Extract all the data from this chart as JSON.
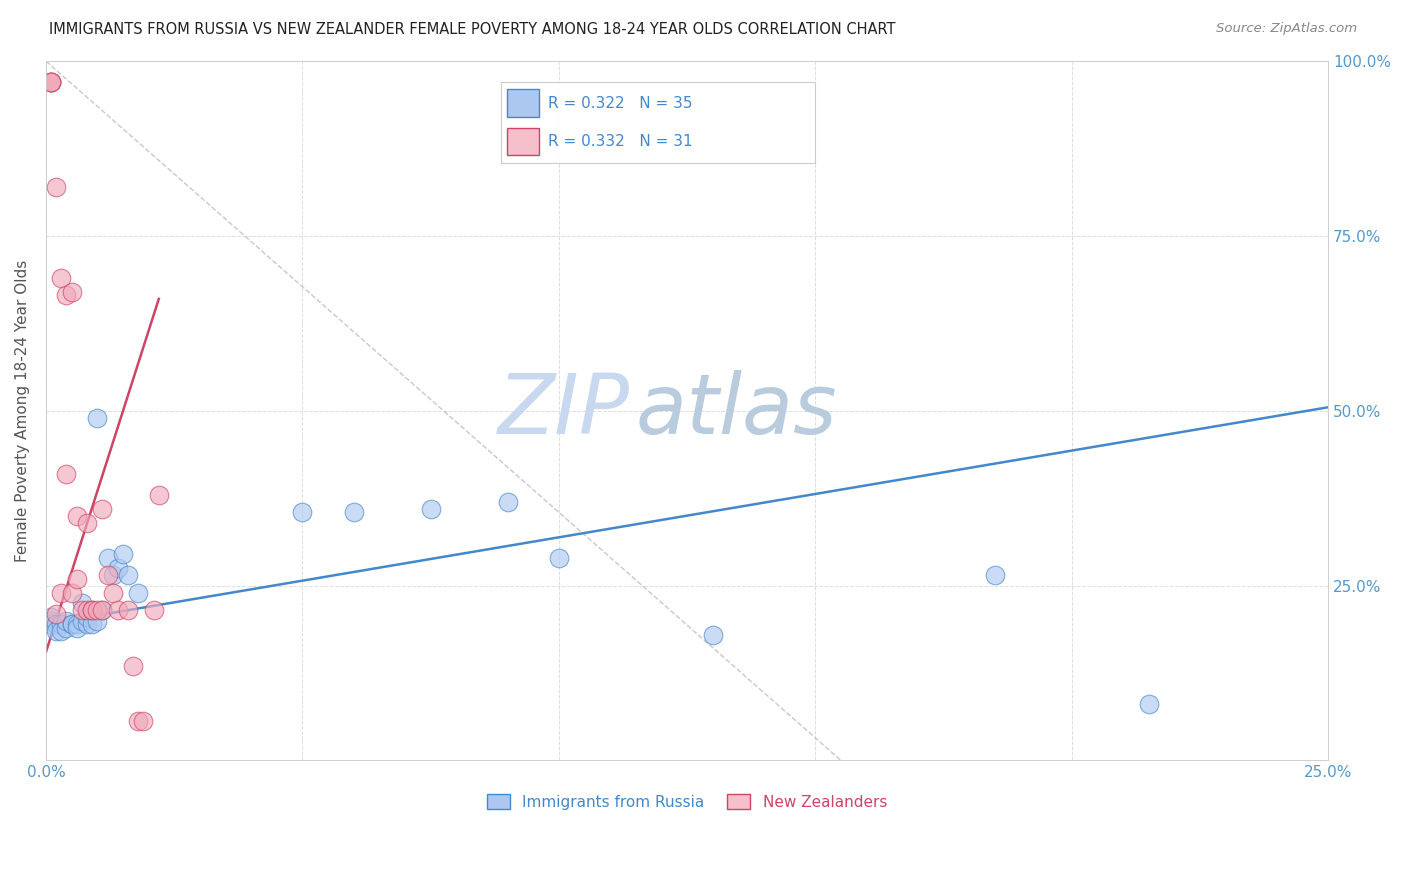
{
  "title": "IMMIGRANTS FROM RUSSIA VS NEW ZEALANDER FEMALE POVERTY AMONG 18-24 YEAR OLDS CORRELATION CHART",
  "source": "Source: ZipAtlas.com",
  "ylabel": "Female Poverty Among 18-24 Year Olds",
  "xlim": [
    0,
    0.25
  ],
  "ylim": [
    0,
    1.0
  ],
  "xticks": [
    0.0,
    0.05,
    0.1,
    0.15,
    0.2,
    0.25
  ],
  "yticks": [
    0.0,
    0.25,
    0.5,
    0.75,
    1.0
  ],
  "blue_R": "0.322",
  "blue_N": "35",
  "pink_R": "0.332",
  "pink_N": "31",
  "blue_color": "#adc8f0",
  "pink_color": "#f0aaba",
  "blue_line_color": "#4488cc",
  "pink_line_color": "#cc4466",
  "legend_blue_color": "#adc8f0",
  "legend_pink_color": "#f5bfcc",
  "watermark_zip_color": "#c8d8ee",
  "watermark_atlas_color": "#b8ccdd",
  "background_color": "#ffffff",
  "grid_color": "#dddddd",
  "axis_color": "#cccccc",
  "title_color": "#222222",
  "source_color": "#888888",
  "ylabel_color": "#555555",
  "tick_label_color": "#5599cc",
  "blue_scatter_x": [
    0.001,
    0.001,
    0.001,
    0.002,
    0.002,
    0.003,
    0.003,
    0.004,
    0.004,
    0.005,
    0.005,
    0.006,
    0.006,
    0.007,
    0.007,
    0.008,
    0.008,
    0.009,
    0.01,
    0.01,
    0.011,
    0.012,
    0.013,
    0.014,
    0.015,
    0.016,
    0.018,
    0.05,
    0.06,
    0.075,
    0.09,
    0.1,
    0.13,
    0.185,
    0.215
  ],
  "blue_scatter_y": [
    0.2,
    0.195,
    0.205,
    0.195,
    0.185,
    0.195,
    0.185,
    0.19,
    0.2,
    0.195,
    0.195,
    0.195,
    0.19,
    0.225,
    0.2,
    0.195,
    0.205,
    0.195,
    0.2,
    0.49,
    0.215,
    0.29,
    0.265,
    0.275,
    0.295,
    0.265,
    0.24,
    0.355,
    0.355,
    0.36,
    0.37,
    0.29,
    0.18,
    0.265,
    0.08
  ],
  "pink_scatter_x": [
    0.001,
    0.001,
    0.001,
    0.001,
    0.002,
    0.002,
    0.003,
    0.003,
    0.004,
    0.004,
    0.005,
    0.005,
    0.006,
    0.006,
    0.007,
    0.008,
    0.008,
    0.009,
    0.009,
    0.01,
    0.011,
    0.011,
    0.012,
    0.013,
    0.014,
    0.016,
    0.017,
    0.018,
    0.019,
    0.021,
    0.022
  ],
  "pink_scatter_y": [
    0.97,
    0.97,
    0.97,
    0.97,
    0.82,
    0.21,
    0.69,
    0.24,
    0.665,
    0.41,
    0.67,
    0.24,
    0.35,
    0.26,
    0.215,
    0.34,
    0.215,
    0.215,
    0.215,
    0.215,
    0.215,
    0.36,
    0.265,
    0.24,
    0.215,
    0.215,
    0.135,
    0.057,
    0.057,
    0.215,
    0.38
  ],
  "blue_line_x": [
    0.0,
    0.25
  ],
  "blue_line_y": [
    0.195,
    0.505
  ],
  "pink_line_x": [
    0.0,
    0.022
  ],
  "pink_line_y": [
    0.155,
    0.66
  ],
  "dashed_line_x": [
    0.0,
    0.155
  ],
  "dashed_line_y": [
    1.0,
    0.0
  ]
}
